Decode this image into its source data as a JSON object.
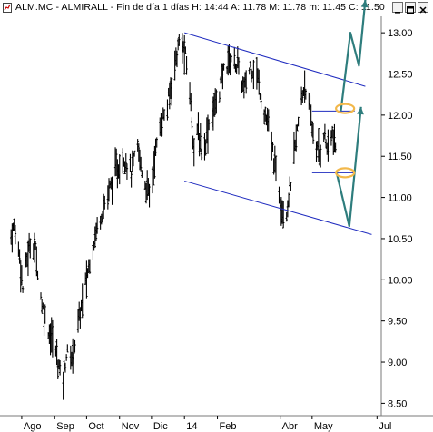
{
  "window": {
    "title": "ALM.MC - ALMIRALL - Fin de día 1 días  H: 14:44  A: 11.78  M: 11.78  m: 11.45  C: 11.50",
    "buttons": [
      "minimize",
      "maximize",
      "close"
    ]
  },
  "chart_data": {
    "type": "ohlc",
    "title": "ALM.MC - ALMIRALL - Fin de día 1 días  H: 14:44  A: 11.78  M: 11.78  m: 11.45  C: 11.50",
    "x_ticks": [
      "Ago",
      "Sep",
      "Oct",
      "Nov",
      "Dic",
      "14",
      "Feb",
      "Abr",
      "May",
      "Jul"
    ],
    "y_ticks": [
      8.5,
      9.0,
      9.5,
      10.0,
      10.5,
      11.0,
      11.5,
      12.0,
      12.5,
      13.0
    ],
    "y_range": [
      8.35,
      13.2
    ],
    "grid": false,
    "price_path": [
      {
        "d": "2013-07-20",
        "v": 10.45
      },
      {
        "d": "2013-07-25",
        "v": 10.65
      },
      {
        "d": "2013-07-30",
        "v": 10.3
      },
      {
        "d": "2013-08-02",
        "v": 9.9
      },
      {
        "d": "2013-08-06",
        "v": 10.25
      },
      {
        "d": "2013-08-10",
        "v": 10.5
      },
      {
        "d": "2013-08-14",
        "v": 10.35
      },
      {
        "d": "2013-08-20",
        "v": 9.7
      },
      {
        "d": "2013-08-26",
        "v": 9.4
      },
      {
        "d": "2013-09-01",
        "v": 9.2
      },
      {
        "d": "2013-09-05",
        "v": 8.95
      },
      {
        "d": "2013-09-08",
        "v": 8.7
      },
      {
        "d": "2013-09-12",
        "v": 9.1
      },
      {
        "d": "2013-09-18",
        "v": 9.05
      },
      {
        "d": "2013-09-22",
        "v": 9.4
      },
      {
        "d": "2013-09-28",
        "v": 9.8
      },
      {
        "d": "2013-10-05",
        "v": 10.3
      },
      {
        "d": "2013-10-12",
        "v": 10.7
      },
      {
        "d": "2013-10-20",
        "v": 11.0
      },
      {
        "d": "2013-10-28",
        "v": 11.3
      },
      {
        "d": "2013-11-05",
        "v": 11.5
      },
      {
        "d": "2013-11-12",
        "v": 11.3
      },
      {
        "d": "2013-11-18",
        "v": 11.6
      },
      {
        "d": "2013-11-24",
        "v": 11.2
      },
      {
        "d": "2013-11-30",
        "v": 11.0
      },
      {
        "d": "2013-12-04",
        "v": 11.5
      },
      {
        "d": "2013-12-10",
        "v": 11.9
      },
      {
        "d": "2013-12-16",
        "v": 12.1
      },
      {
        "d": "2013-12-22",
        "v": 12.55
      },
      {
        "d": "2013-12-28",
        "v": 12.95
      },
      {
        "d": "2014-01-02",
        "v": 12.7
      },
      {
        "d": "2014-01-06",
        "v": 12.3
      },
      {
        "d": "2014-01-10",
        "v": 11.6
      },
      {
        "d": "2014-01-14",
        "v": 11.8
      },
      {
        "d": "2014-01-18",
        "v": 11.5
      },
      {
        "d": "2014-01-24",
        "v": 11.9
      },
      {
        "d": "2014-02-01",
        "v": 12.2
      },
      {
        "d": "2014-02-08",
        "v": 12.6
      },
      {
        "d": "2014-02-14",
        "v": 12.7
      },
      {
        "d": "2014-02-20",
        "v": 12.6
      },
      {
        "d": "2014-02-26",
        "v": 12.3
      },
      {
        "d": "2014-03-04",
        "v": 12.6
      },
      {
        "d": "2014-03-10",
        "v": 12.5
      },
      {
        "d": "2014-03-16",
        "v": 12.1
      },
      {
        "d": "2014-03-22",
        "v": 11.8
      },
      {
        "d": "2014-03-28",
        "v": 11.3
      },
      {
        "d": "2014-04-01",
        "v": 11.0
      },
      {
        "d": "2014-04-06",
        "v": 10.75
      },
      {
        "d": "2014-04-10",
        "v": 11.1
      },
      {
        "d": "2014-04-15",
        "v": 11.6
      },
      {
        "d": "2014-04-20",
        "v": 12.1
      },
      {
        "d": "2014-04-24",
        "v": 12.4
      },
      {
        "d": "2014-04-28",
        "v": 12.1
      },
      {
        "d": "2014-05-03",
        "v": 11.7
      },
      {
        "d": "2014-05-08",
        "v": 11.5
      },
      {
        "d": "2014-05-12",
        "v": 11.8
      },
      {
        "d": "2014-05-16",
        "v": 11.55
      },
      {
        "d": "2014-05-20",
        "v": 11.78
      },
      {
        "d": "2014-05-24",
        "v": 11.5
      }
    ],
    "channel_lines": [
      {
        "name": "upper",
        "from": {
          "d": "2014-01-01",
          "v": 13.0
        },
        "to": {
          "d": "2014-06-20",
          "v": 12.35
        }
      },
      {
        "name": "lower",
        "from": {
          "d": "2014-01-01",
          "v": 11.2
        },
        "to": {
          "d": "2014-06-26",
          "v": 10.55
        }
      }
    ],
    "level_lines": [
      {
        "from": "2014-05-01",
        "to": "2014-06-10",
        "v": 12.05
      },
      {
        "from": "2014-05-01",
        "to": "2014-06-10",
        "v": 11.3
      }
    ],
    "highlight_ellipses": [
      {
        "d": "2014-06-01",
        "v": 12.08
      },
      {
        "d": "2014-06-01",
        "v": 11.3
      }
    ],
    "projection_paths": [
      [
        {
          "d": "2014-05-24",
          "v": 11.3
        },
        {
          "d": "2014-06-05",
          "v": 10.65
        },
        {
          "d": "2014-06-16",
          "v": 12.1
        }
      ],
      [
        {
          "d": "2014-05-28",
          "v": 12.05
        },
        {
          "d": "2014-06-06",
          "v": 13.0
        },
        {
          "d": "2014-06-14",
          "v": 12.6
        },
        {
          "d": "2014-06-20",
          "v": 13.4
        }
      ]
    ],
    "colors": {
      "price": "#000000",
      "channel": "#1f2bbf",
      "level": "#1f2bbf",
      "projection": "#2e7d7d",
      "ellipse": "#f2b84b",
      "frame": "#7a7a7a"
    }
  }
}
